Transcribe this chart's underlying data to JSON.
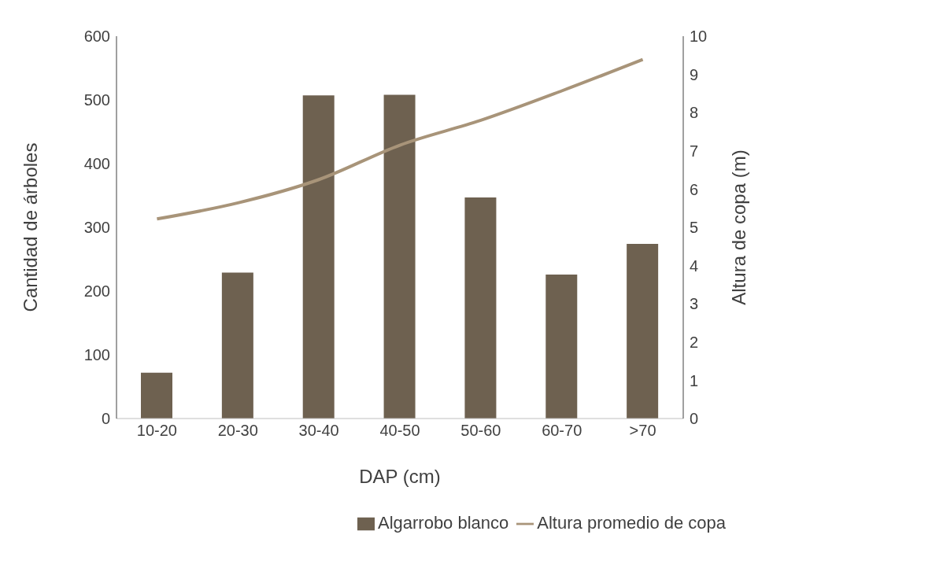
{
  "chart_data": {
    "type": "bar",
    "xlabel": "DAP (cm)",
    "ylabel": "Cantidad de árboles",
    "y2label": "Altura de copa (m)",
    "categories": [
      "10-20",
      "20-30",
      "30-40",
      "40-50",
      "50-60",
      "60-70",
      ">70"
    ],
    "series": [
      {
        "name": "Algarrobo blanco",
        "color": "#6e6150",
        "values": [
          72,
          229,
          507,
          508,
          347,
          226,
          274
        ]
      },
      {
        "name": "Altura promedio de copa",
        "type": "line",
        "axis": "y2",
        "color": "#a89479",
        "values": [
          5.22,
          5.64,
          6.25,
          7.15,
          7.8,
          8.57,
          9.39
        ]
      }
    ],
    "ylim": [
      0,
      600
    ],
    "yticks": [
      0,
      100,
      200,
      300,
      400,
      500,
      600
    ],
    "y2lim": [
      0,
      10
    ],
    "y2ticks": [
      0,
      1,
      2,
      3,
      4,
      5,
      6,
      7,
      8,
      9,
      10
    ],
    "grid": false,
    "legend": "bottom",
    "marker": "none",
    "line_style": "solid"
  }
}
